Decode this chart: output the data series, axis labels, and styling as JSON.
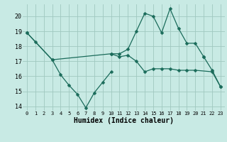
{
  "xlabel": "Humidex (Indice chaleur)",
  "xlim": [
    -0.5,
    23.5
  ],
  "ylim": [
    13.7,
    20.8
  ],
  "yticks": [
    14,
    15,
    16,
    17,
    18,
    19,
    20
  ],
  "xticks": [
    0,
    1,
    2,
    3,
    4,
    5,
    6,
    7,
    8,
    9,
    10,
    11,
    12,
    13,
    14,
    15,
    16,
    17,
    18,
    19,
    20,
    21,
    22,
    23
  ],
  "background_color": "#c8eae4",
  "grid_color": "#a0c8c0",
  "line_color": "#1a6b5a",
  "line1_x": [
    0,
    1,
    3,
    4,
    5,
    6,
    7,
    8,
    9,
    10
  ],
  "line1_y": [
    18.9,
    18.3,
    17.1,
    16.1,
    15.4,
    14.8,
    13.9,
    14.9,
    15.6,
    16.3
  ],
  "line2_x": [
    0,
    3,
    10,
    11,
    12,
    13,
    14,
    15,
    16,
    17,
    18,
    19,
    20,
    22,
    23
  ],
  "line2_y": [
    18.9,
    17.1,
    17.5,
    17.3,
    17.4,
    17.0,
    16.3,
    16.5,
    16.5,
    16.5,
    16.4,
    16.4,
    16.4,
    16.3,
    15.3
  ],
  "line3_x": [
    10,
    11,
    12,
    13,
    14,
    15,
    16,
    17,
    18,
    19,
    20,
    21
  ],
  "line3_y": [
    17.5,
    17.5,
    17.8,
    19.0,
    20.2,
    20.0,
    18.9,
    20.5,
    19.2,
    18.2,
    18.2,
    17.3
  ],
  "line4_x": [
    21,
    22,
    23
  ],
  "line4_y": [
    17.3,
    16.4,
    15.3
  ]
}
